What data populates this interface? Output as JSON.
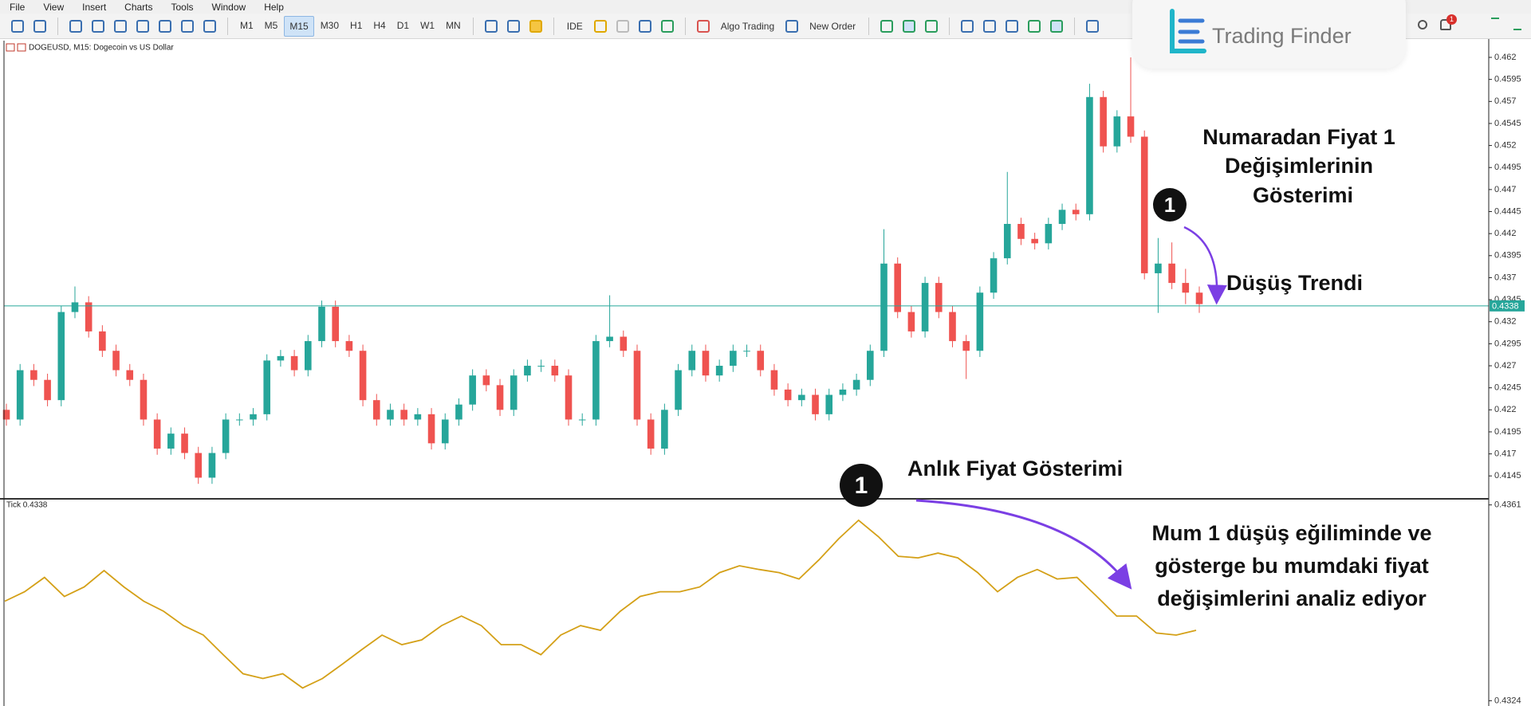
{
  "menu": [
    "File",
    "View",
    "Insert",
    "Charts",
    "Tools",
    "Window",
    "Help"
  ],
  "toolbar": {
    "timeframes": [
      "M1",
      "M5",
      "M15",
      "M30",
      "H1",
      "H4",
      "D1",
      "W1",
      "MN"
    ],
    "active_timeframe_index": 2,
    "ide": "IDE",
    "algo_trading": "Algo Trading",
    "new_order": "New Order"
  },
  "brand": "Trading Finder",
  "notification": "1",
  "chart_data": [
    {
      "type": "candlestick",
      "title": "DOGEUSD, M15: Dogecoin vs US Dollar",
      "up_color": "#26a69a",
      "down_color": "#ef5350",
      "open": [
        0.422,
        0.4209,
        0.4265,
        0.4254,
        0.4231,
        0.4331,
        0.4342,
        0.4309,
        0.4287,
        0.4265,
        0.4254,
        0.4209,
        0.4176,
        0.4193,
        0.4171,
        0.4143,
        0.4171,
        0.4209,
        0.4209,
        0.4215,
        0.4276,
        0.4281,
        0.4265,
        0.4298,
        0.4337,
        0.4298,
        0.4287,
        0.4231,
        0.4209,
        0.422,
        0.4209,
        0.4215,
        0.4182,
        0.4209,
        0.4226,
        0.4259,
        0.4248,
        0.422,
        0.4259,
        0.427,
        0.427,
        0.4259,
        0.4209,
        0.4209,
        0.4298,
        0.4303,
        0.4287,
        0.4209,
        0.4176,
        0.422,
        0.4265,
        0.4287,
        0.4259,
        0.427,
        0.4287,
        0.4287,
        0.4265,
        0.4243,
        0.4231,
        0.4237,
        0.4215,
        0.4237,
        0.4243,
        0.4254,
        0.4287,
        0.4386,
        0.4331,
        0.4309,
        0.4364,
        0.4331,
        0.4298,
        0.4287,
        0.4353,
        0.4392,
        0.4431,
        0.4414,
        0.4409,
        0.4431,
        0.4447,
        0.4442,
        0.4575,
        0.4519,
        0.4553,
        0.453,
        0.4375,
        0.4386,
        0.4364,
        0.4353
      ],
      "high": [
        0.4227,
        0.4272,
        0.4272,
        0.4261,
        0.4338,
        0.436,
        0.4349,
        0.4316,
        0.4294,
        0.4272,
        0.4261,
        0.4216,
        0.42,
        0.42,
        0.4178,
        0.4178,
        0.4216,
        0.4216,
        0.4222,
        0.4283,
        0.4288,
        0.4288,
        0.4305,
        0.4344,
        0.4344,
        0.4305,
        0.4294,
        0.4238,
        0.4227,
        0.4227,
        0.4222,
        0.4222,
        0.4216,
        0.4233,
        0.4266,
        0.4266,
        0.4255,
        0.4266,
        0.4277,
        0.4277,
        0.4277,
        0.4266,
        0.4216,
        0.4305,
        0.435,
        0.431,
        0.4294,
        0.4216,
        0.4227,
        0.4272,
        0.4294,
        0.4294,
        0.4277,
        0.4294,
        0.4294,
        0.4294,
        0.4272,
        0.425,
        0.4244,
        0.4244,
        0.4244,
        0.425,
        0.4261,
        0.4294,
        0.4425,
        0.4393,
        0.4338,
        0.4371,
        0.4371,
        0.4338,
        0.4305,
        0.436,
        0.4399,
        0.449,
        0.4438,
        0.4421,
        0.4438,
        0.4454,
        0.4454,
        0.459,
        0.4582,
        0.456,
        0.462,
        0.4537,
        0.4415,
        0.441,
        0.438,
        0.436
      ],
      "low": [
        0.4202,
        0.4202,
        0.4247,
        0.4224,
        0.4224,
        0.4324,
        0.4302,
        0.428,
        0.4258,
        0.4247,
        0.4202,
        0.4169,
        0.4169,
        0.4164,
        0.4136,
        0.4136,
        0.4164,
        0.4202,
        0.4202,
        0.4208,
        0.4269,
        0.4258,
        0.4258,
        0.4291,
        0.4291,
        0.428,
        0.4224,
        0.4202,
        0.4202,
        0.4202,
        0.4202,
        0.4175,
        0.4175,
        0.4202,
        0.4219,
        0.4241,
        0.4213,
        0.4213,
        0.4252,
        0.4263,
        0.4252,
        0.4202,
        0.4202,
        0.4202,
        0.4291,
        0.428,
        0.4202,
        0.4169,
        0.4169,
        0.4213,
        0.4258,
        0.4252,
        0.4252,
        0.4263,
        0.428,
        0.4258,
        0.4236,
        0.4224,
        0.4224,
        0.4208,
        0.4208,
        0.423,
        0.4236,
        0.4247,
        0.428,
        0.4324,
        0.4302,
        0.4302,
        0.4324,
        0.4291,
        0.4255,
        0.428,
        0.4346,
        0.4385,
        0.4407,
        0.4402,
        0.4402,
        0.4424,
        0.4435,
        0.4435,
        0.4512,
        0.4512,
        0.4523,
        0.4368,
        0.433,
        0.4357,
        0.434,
        0.433
      ],
      "close": [
        0.4209,
        0.4265,
        0.4254,
        0.4231,
        0.4331,
        0.4342,
        0.4309,
        0.4287,
        0.4265,
        0.4254,
        0.4209,
        0.4176,
        0.4193,
        0.4171,
        0.4143,
        0.4171,
        0.4209,
        0.4209,
        0.4215,
        0.4276,
        0.4281,
        0.4265,
        0.4298,
        0.4337,
        0.4298,
        0.4287,
        0.4231,
        0.4209,
        0.422,
        0.4209,
        0.4215,
        0.4182,
        0.4209,
        0.4226,
        0.4259,
        0.4248,
        0.422,
        0.4259,
        0.427,
        0.427,
        0.4259,
        0.4209,
        0.4209,
        0.4298,
        0.4303,
        0.4287,
        0.4209,
        0.4176,
        0.422,
        0.4265,
        0.4287,
        0.4259,
        0.427,
        0.4287,
        0.4287,
        0.4265,
        0.4243,
        0.4231,
        0.4237,
        0.4215,
        0.4237,
        0.4243,
        0.4254,
        0.4287,
        0.4386,
        0.4331,
        0.4309,
        0.4364,
        0.4331,
        0.4298,
        0.4287,
        0.4353,
        0.4392,
        0.4431,
        0.4414,
        0.4409,
        0.4431,
        0.4447,
        0.4442,
        0.4575,
        0.4519,
        0.4553,
        0.453,
        0.4375,
        0.4386,
        0.4364,
        0.4353,
        0.434
      ],
      "ylim": [
        0.4119,
        0.4639
      ],
      "yticks": [
        0.4145,
        0.417,
        0.4195,
        0.422,
        0.4245,
        0.427,
        0.4295,
        0.432,
        0.4345,
        0.437,
        0.4395,
        0.442,
        0.4445,
        0.447,
        0.4495,
        0.452,
        0.4545,
        0.457,
        0.4595,
        0.462
      ],
      "current_price": 0.4338,
      "current_price_color": "#26a69a",
      "annotations": [
        {
          "lines": [
            "Numaradan Fiyat  1",
            "Değişimlerinin",
            "Gösterimi"
          ],
          "badge": "1"
        },
        {
          "lines": [
            "Düşüş Trendi"
          ]
        },
        {
          "lines": [
            "Anlık Fiyat Gösterimi"
          ],
          "badge": "1"
        },
        {
          "lines": [
            "Mum 1 düşüş eğiliminde ve",
            "gösterge bu mumdaki fiyat",
            "değişimlerini analiz ediyor"
          ]
        }
      ]
    },
    {
      "type": "line",
      "title": "Tick 0.4338",
      "color": "#d4a017",
      "values": [
        0.43428,
        0.43446,
        0.43473,
        0.43437,
        0.43455,
        0.43486,
        0.43455,
        0.43428,
        0.43409,
        0.43382,
        0.43364,
        0.43327,
        0.43291,
        0.43282,
        0.43291,
        0.43264,
        0.43282,
        0.43309,
        0.43337,
        0.43364,
        0.43346,
        0.43355,
        0.43382,
        0.434,
        0.43382,
        0.43346,
        0.43346,
        0.43327,
        0.43364,
        0.43382,
        0.43373,
        0.43409,
        0.43437,
        0.43446,
        0.43446,
        0.43455,
        0.43482,
        0.43495,
        0.43488,
        0.43482,
        0.4347,
        0.43506,
        0.43546,
        0.43581,
        0.4355,
        0.43513,
        0.4351,
        0.43519,
        0.4351,
        0.43482,
        0.43446,
        0.43473,
        0.43488,
        0.4347,
        0.43473,
        0.43437,
        0.434,
        0.434,
        0.43368,
        0.43364,
        0.43373
      ],
      "ylim": [
        0.4323,
        0.4362
      ],
      "yticks": [
        0.4361,
        0.4324
      ]
    }
  ]
}
